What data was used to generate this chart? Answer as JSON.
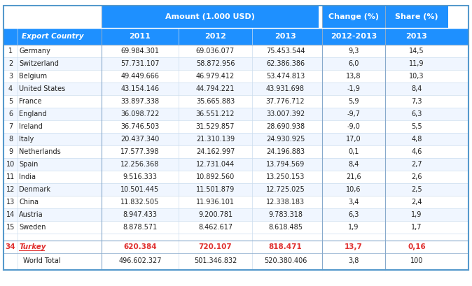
{
  "title_row1": "Amount (1.000 USD)",
  "title_change": "Change (%)",
  "title_share": "Share (%)",
  "col_headers": [
    "Export Country",
    "2011",
    "2012",
    "2013",
    "2012-2013",
    "2013"
  ],
  "rows": [
    [
      "1",
      "Germany",
      "69.984.301",
      "69.036.077",
      "75.453.544",
      "9,3",
      "14,5"
    ],
    [
      "2",
      "Switzerland",
      "57.731.107",
      "58.872.956",
      "62.386.386",
      "6,0",
      "11,9"
    ],
    [
      "3",
      "Belgium",
      "49.449.666",
      "46.979.412",
      "53.474.813",
      "13,8",
      "10,3"
    ],
    [
      "4",
      "United States",
      "43.154.146",
      "44.794.221",
      "43.931.698",
      "-1,9",
      "8,4"
    ],
    [
      "5",
      "France",
      "33.897.338",
      "35.665.883",
      "37.776.712",
      "5,9",
      "7,3"
    ],
    [
      "6",
      "England",
      "36.098.722",
      "36.551.212",
      "33.007.392",
      "-9,7",
      "6,3"
    ],
    [
      "7",
      "Ireland",
      "36.746.503",
      "31.529.857",
      "28.690.938",
      "-9,0",
      "5,5"
    ],
    [
      "8",
      "Italy",
      "20.437.340",
      "21.310.139",
      "24.930.925",
      "17,0",
      "4,8"
    ],
    [
      "9",
      "Netherlands",
      "17.577.398",
      "24.162.997",
      "24.196.883",
      "0,1",
      "4,6"
    ],
    [
      "10",
      "Spain",
      "12.256.368",
      "12.731.044",
      "13.794.569",
      "8,4",
      "2,7"
    ],
    [
      "11",
      "India",
      "9.516.333",
      "10.892.560",
      "13.250.153",
      "21,6",
      "2,6"
    ],
    [
      "12",
      "Denmark",
      "10.501.445",
      "11.501.879",
      "12.725.025",
      "10,6",
      "2,5"
    ],
    [
      "13",
      "China",
      "11.832.505",
      "11.936.101",
      "12.338.183",
      "3,4",
      "2,4"
    ],
    [
      "14",
      "Austria",
      "8.947.433",
      "9.200.781",
      "9.783.318",
      "6,3",
      "1,9"
    ],
    [
      "15",
      "Sweden",
      "8.878.571",
      "8.462.617",
      "8.618.485",
      "1,9",
      "1,7"
    ]
  ],
  "turkey_row": [
    "34",
    "Turkey",
    "620.384",
    "720.107",
    "818.471",
    "13,7",
    "0,16"
  ],
  "world_row": [
    "",
    "World Total",
    "496.602.327",
    "501.346.832",
    "520.380.406",
    "3,8",
    "100"
  ],
  "header_bg": "#1e90ff",
  "header_text": "#ffffff",
  "subheader_bg": "#1e90ff",
  "row_odd_bg": "#ffffff",
  "row_even_bg": "#ffffff",
  "turkey_color": "#e03030",
  "border_color": "#aaaacc",
  "normal_text": "#222222",
  "fig_bg": "#ffffff"
}
